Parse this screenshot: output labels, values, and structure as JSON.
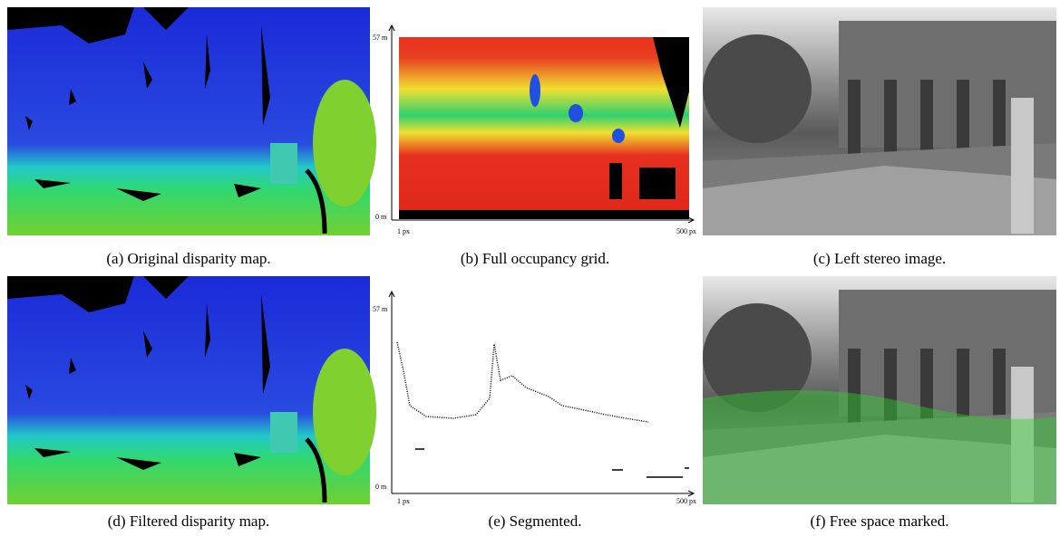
{
  "panels": [
    {
      "caption": "(a) Original disparity map."
    },
    {
      "caption": "(b) Full occupancy grid.",
      "y_top": "57 m",
      "y_bottom": "0 m",
      "x_left": "1 px",
      "x_right": "500 px"
    },
    {
      "caption": "(c) Left stereo image."
    },
    {
      "caption": "(d) Filtered disparity map."
    },
    {
      "caption": "(e) Segmented.",
      "y_top": "57 m",
      "y_bottom": "0 m",
      "x_left": "1 px",
      "x_right": "500 px"
    },
    {
      "caption": "(f) Free space marked."
    }
  ]
}
